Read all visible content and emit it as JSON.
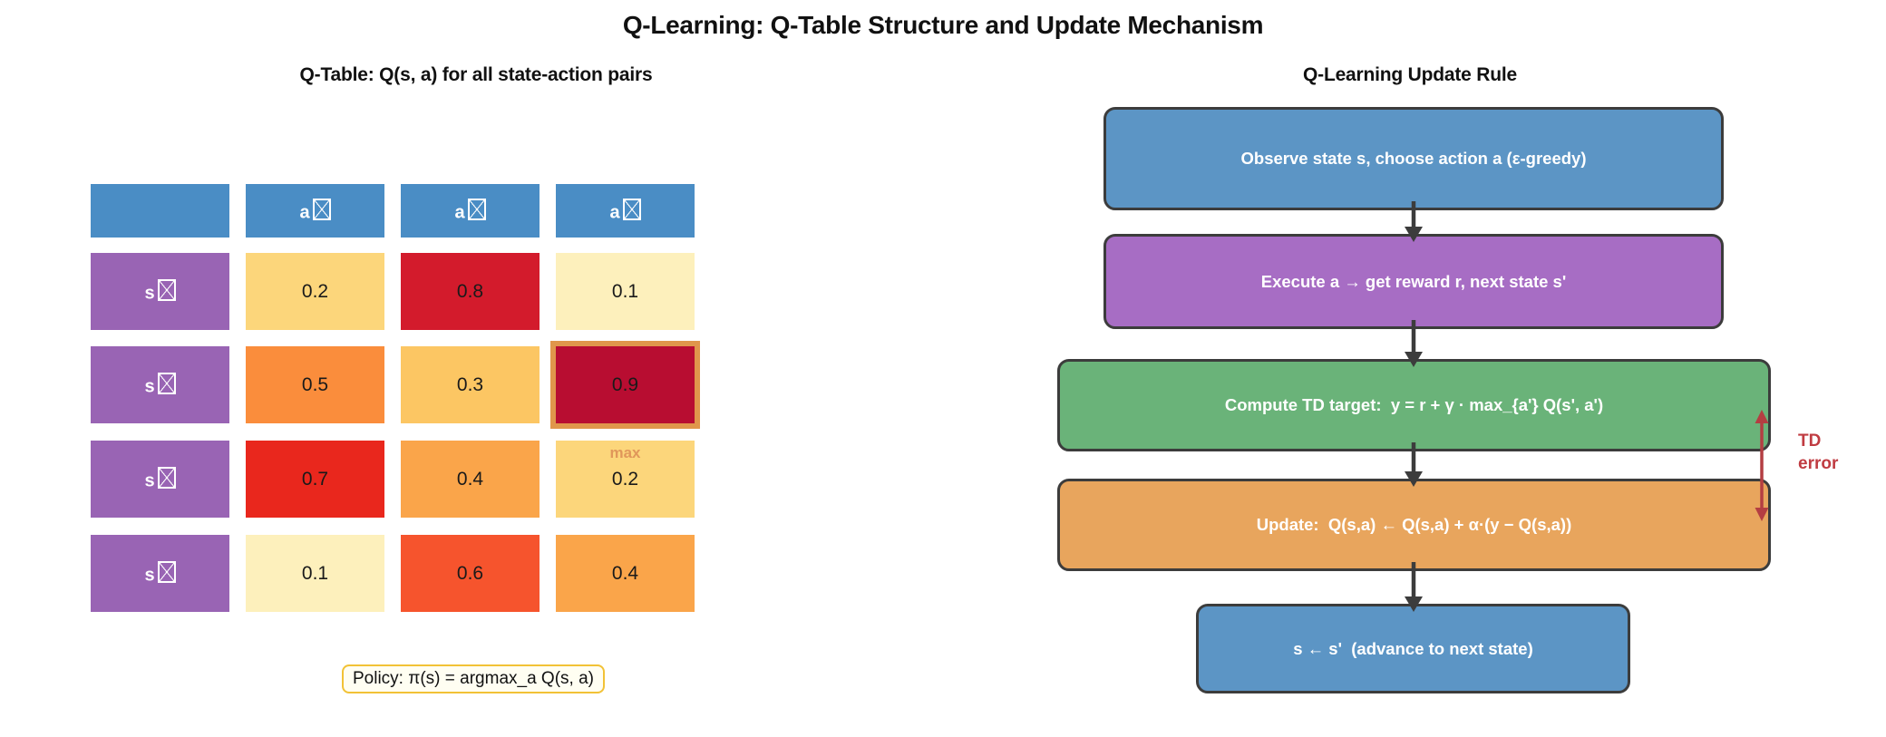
{
  "title": "Q-Learning: Q-Table Structure and Update Mechanism",
  "left_panel": {
    "subtitle": "Q-Table: Q(s, a) for all state-action pairs",
    "table": {
      "corner_label": "",
      "action_prefix": "a",
      "state_prefix": "s",
      "header_bg": "#4A8DC5",
      "state_bg": "#9964B4",
      "rows": [
        {
          "values": [
            "0.2",
            "0.8",
            "0.1"
          ],
          "colors": [
            "#FCD67B",
            "#D31B2C",
            "#FDF0BC"
          ]
        },
        {
          "values": [
            "0.5",
            "0.3",
            "0.9"
          ],
          "colors": [
            "#FA8D3C",
            "#FCC663",
            "#B80D31"
          ]
        },
        {
          "values": [
            "0.7",
            "0.4",
            "0.2"
          ],
          "colors": [
            "#E9271D",
            "#FAA54A",
            "#FCD67B"
          ]
        },
        {
          "values": [
            "0.1",
            "0.6",
            "0.4"
          ],
          "colors": [
            "#FDF0BC",
            "#F6542D",
            "#FAA54A"
          ]
        }
      ],
      "highlight": {
        "row": 1,
        "col": 2,
        "border_color": "#E0964B"
      },
      "max_annotation": {
        "row": 2,
        "col": 2,
        "label": "max",
        "color": "#E0975A"
      }
    },
    "policy": {
      "text": "Policy: π(s) = argmax_a Q(s, a)",
      "border_color": "#F2C236",
      "bg": "#FFFEF2"
    }
  },
  "right_panel": {
    "subtitle": "Q-Learning Update Rule",
    "steps": [
      {
        "text": "Observe state s, choose action a (ε-greedy)",
        "color": "#5C95C5"
      },
      {
        "text": "Execute a → get reward r, next state s'",
        "color": "#A76DC4"
      },
      {
        "text": "Compute TD target:  y = r + γ · max_{a'} Q(s', a')",
        "color": "#6AB379"
      },
      {
        "text": "Update:  Q(s,a) ← Q(s,a) + α·(y − Q(s,a))",
        "color": "#E8A55D"
      },
      {
        "text": "s ← s'  (advance to next state)",
        "color": "#5C95C5"
      }
    ],
    "box_border_color": "#3C3C3C",
    "flow_arrow_color": "#3C3C3C",
    "td_error": {
      "lines": [
        "TD",
        "error"
      ],
      "color": "#C03C42",
      "arrow_color": "#B43E42"
    }
  }
}
